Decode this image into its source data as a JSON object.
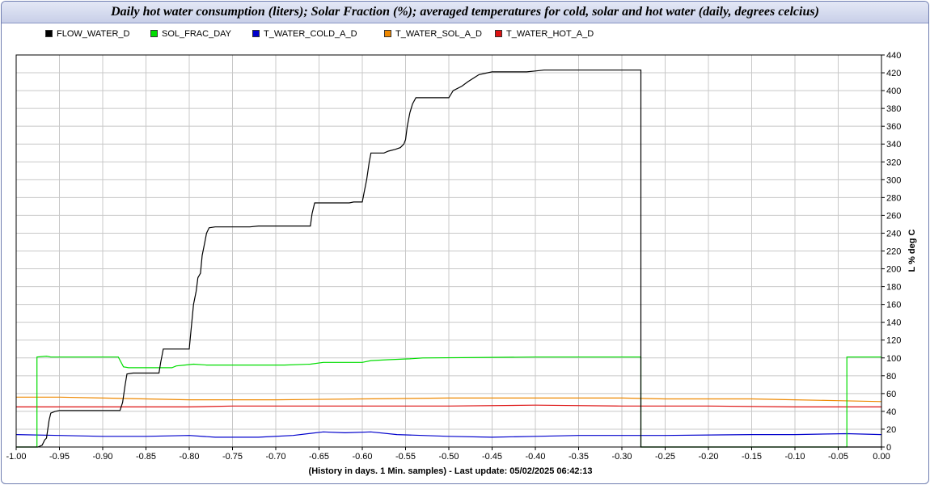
{
  "chart_data": {
    "type": "line",
    "title": "Daily hot water consumption (liters); Solar Fraction (%); averaged temperatures for cold, solar and hot water (daily, degrees celcius)",
    "xlabel": "(History in days. 1 Min. samples) - Last update: 05/02/2025 06:42:13",
    "ylabel": "L % deg C",
    "xlim": [
      -1.0,
      0.0
    ],
    "ylim": [
      0,
      440
    ],
    "x_ticks": [
      "-1.00",
      "-0.95",
      "-0.90",
      "-0.85",
      "-0.80",
      "-0.75",
      "-0.70",
      "-0.65",
      "-0.60",
      "-0.55",
      "-0.50",
      "-0.45",
      "-0.40",
      "-0.35",
      "-0.30",
      "-0.25",
      "-0.20",
      "-0.15",
      "-0.10",
      "-0.05",
      "0.00"
    ],
    "y_ticks": [
      "0",
      "20",
      "40",
      "60",
      "80",
      "100",
      "120",
      "140",
      "160",
      "180",
      "200",
      "220",
      "240",
      "260",
      "280",
      "300",
      "320",
      "340",
      "360",
      "380",
      "400",
      "420",
      "440"
    ],
    "grid": true,
    "legend_position": "top-left",
    "series": [
      {
        "name": "FLOW_WATER_D",
        "color": "#000000",
        "points": [
          [
            -1.0,
            0
          ],
          [
            -0.975,
            0
          ],
          [
            -0.97,
            2
          ],
          [
            -0.967,
            8
          ],
          [
            -0.965,
            10
          ],
          [
            -0.962,
            30
          ],
          [
            -0.96,
            38
          ],
          [
            -0.955,
            40
          ],
          [
            -0.95,
            41
          ],
          [
            -0.88,
            41
          ],
          [
            -0.877,
            50
          ],
          [
            -0.874,
            70
          ],
          [
            -0.872,
            82
          ],
          [
            -0.865,
            83
          ],
          [
            -0.835,
            83
          ],
          [
            -0.833,
            95
          ],
          [
            -0.83,
            110
          ],
          [
            -0.8,
            110
          ],
          [
            -0.798,
            130
          ],
          [
            -0.795,
            160
          ],
          [
            -0.792,
            175
          ],
          [
            -0.79,
            190
          ],
          [
            -0.787,
            195
          ],
          [
            -0.785,
            215
          ],
          [
            -0.782,
            230
          ],
          [
            -0.78,
            240
          ],
          [
            -0.777,
            246
          ],
          [
            -0.77,
            247
          ],
          [
            -0.73,
            247
          ],
          [
            -0.72,
            248
          ],
          [
            -0.66,
            248
          ],
          [
            -0.658,
            262
          ],
          [
            -0.655,
            274
          ],
          [
            -0.615,
            274
          ],
          [
            -0.61,
            275
          ],
          [
            -0.6,
            275
          ],
          [
            -0.598,
            285
          ],
          [
            -0.595,
            300
          ],
          [
            -0.592,
            320
          ],
          [
            -0.59,
            330
          ],
          [
            -0.575,
            330
          ],
          [
            -0.57,
            332
          ],
          [
            -0.562,
            334
          ],
          [
            -0.556,
            336
          ],
          [
            -0.552,
            340
          ],
          [
            -0.55,
            345
          ],
          [
            -0.548,
            360
          ],
          [
            -0.545,
            375
          ],
          [
            -0.542,
            385
          ],
          [
            -0.538,
            392
          ],
          [
            -0.5,
            392
          ],
          [
            -0.495,
            400
          ],
          [
            -0.485,
            405
          ],
          [
            -0.478,
            410
          ],
          [
            -0.47,
            415
          ],
          [
            -0.465,
            418
          ],
          [
            -0.455,
            420
          ],
          [
            -0.45,
            421
          ],
          [
            -0.41,
            421
          ],
          [
            -0.4,
            422
          ],
          [
            -0.39,
            423
          ],
          [
            -0.278,
            423
          ],
          [
            -0.278,
            0
          ],
          [
            0.0,
            0
          ]
        ]
      },
      {
        "name": "SOL_FRAC_DAY",
        "color": "#00dd00",
        "points": [
          [
            -1.0,
            0
          ],
          [
            -0.976,
            0
          ],
          [
            -0.976,
            101
          ],
          [
            -0.965,
            102
          ],
          [
            -0.96,
            101
          ],
          [
            -0.882,
            101
          ],
          [
            -0.876,
            90
          ],
          [
            -0.87,
            89
          ],
          [
            -0.82,
            89
          ],
          [
            -0.815,
            91
          ],
          [
            -0.805,
            92
          ],
          [
            -0.795,
            93
          ],
          [
            -0.78,
            92
          ],
          [
            -0.69,
            92
          ],
          [
            -0.66,
            93
          ],
          [
            -0.645,
            95
          ],
          [
            -0.6,
            95
          ],
          [
            -0.59,
            97
          ],
          [
            -0.57,
            98
          ],
          [
            -0.545,
            99
          ],
          [
            -0.53,
            100
          ],
          [
            -0.4,
            101
          ],
          [
            -0.278,
            101
          ],
          [
            -0.278,
            0
          ],
          [
            -0.04,
            0
          ],
          [
            -0.04,
            101
          ],
          [
            0.0,
            101
          ]
        ]
      },
      {
        "name": "T_WATER_COLD_A_D",
        "color": "#0000cc",
        "points": [
          [
            -1.0,
            14
          ],
          [
            -0.95,
            13
          ],
          [
            -0.9,
            12
          ],
          [
            -0.85,
            12
          ],
          [
            -0.8,
            13
          ],
          [
            -0.77,
            11
          ],
          [
            -0.72,
            11
          ],
          [
            -0.68,
            13
          ],
          [
            -0.645,
            17
          ],
          [
            -0.62,
            16
          ],
          [
            -0.59,
            17
          ],
          [
            -0.56,
            14
          ],
          [
            -0.5,
            12
          ],
          [
            -0.45,
            11
          ],
          [
            -0.4,
            12
          ],
          [
            -0.35,
            13
          ],
          [
            -0.3,
            13
          ],
          [
            -0.25,
            13
          ],
          [
            -0.15,
            14
          ],
          [
            -0.1,
            14
          ],
          [
            -0.04,
            15
          ],
          [
            0.0,
            14
          ]
        ]
      },
      {
        "name": "T_WATER_SOL_A_D",
        "color": "#ee8800",
        "points": [
          [
            -1.0,
            56
          ],
          [
            -0.95,
            56
          ],
          [
            -0.9,
            55
          ],
          [
            -0.85,
            54
          ],
          [
            -0.8,
            53
          ],
          [
            -0.75,
            53
          ],
          [
            -0.7,
            53
          ],
          [
            -0.6,
            54
          ],
          [
            -0.5,
            55
          ],
          [
            -0.4,
            55
          ],
          [
            -0.3,
            55
          ],
          [
            -0.25,
            54
          ],
          [
            -0.15,
            54
          ],
          [
            -0.1,
            53
          ],
          [
            -0.05,
            52
          ],
          [
            0.0,
            51
          ]
        ]
      },
      {
        "name": "T_WATER_HOT_A_D",
        "color": "#dd1111",
        "points": [
          [
            -1.0,
            45
          ],
          [
            -0.9,
            45
          ],
          [
            -0.85,
            45
          ],
          [
            -0.8,
            45
          ],
          [
            -0.75,
            46
          ],
          [
            -0.6,
            46
          ],
          [
            -0.5,
            46
          ],
          [
            -0.4,
            47
          ],
          [
            -0.3,
            46
          ],
          [
            -0.2,
            46
          ],
          [
            -0.1,
            45
          ],
          [
            -0.05,
            45
          ],
          [
            0.0,
            45
          ]
        ]
      }
    ]
  }
}
